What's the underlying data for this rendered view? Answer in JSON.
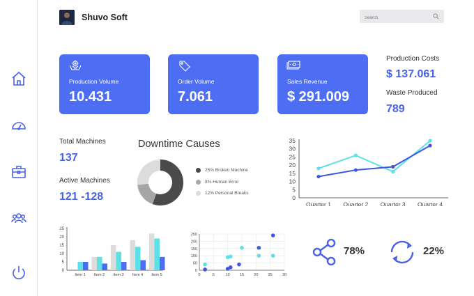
{
  "app": {
    "name": "Shuvo Soft"
  },
  "search": {
    "placeholder": "Search"
  },
  "sidebar": {
    "items": [
      {
        "name": "home-icon"
      },
      {
        "name": "dashboard-gauge-icon"
      },
      {
        "name": "briefcase-icon"
      },
      {
        "name": "users-icon"
      },
      {
        "name": "power-icon"
      }
    ]
  },
  "cards": [
    {
      "label": "Production Volume",
      "value": "10.431",
      "icon": "hands-gear-icon"
    },
    {
      "label": "Order Volume",
      "value": "7.061",
      "icon": "tag-icon"
    },
    {
      "label": "Sales Revenue",
      "value": "$ 291.009",
      "icon": "money-icon"
    }
  ],
  "colors": {
    "accent": "#4d6ef2",
    "accent_dark": "#3d57e3",
    "teal": "#5ce1e6",
    "light_gray": "#dcdcdc",
    "dark_gray": "#4a4a4a",
    "mid_gray": "#a6a6a6"
  },
  "production_costs": {
    "label": "Production Costs",
    "value": "$ 137.061"
  },
  "waste_produced": {
    "label": "Waste Produced",
    "value": "789"
  },
  "total_machines": {
    "label": "Total Machines",
    "value": "137"
  },
  "active_machines": {
    "label": "Active Machines",
    "value": "121 -128"
  },
  "downtime": {
    "title": "Downtime Causes",
    "legend": [
      {
        "label": "25% Broken Machine",
        "color": "#4a4a4a"
      },
      {
        "label": "8% Human Error",
        "color": "#a6a6a6"
      },
      {
        "label": "12% Personal Breaks",
        "color": "#dcdcdc"
      }
    ]
  },
  "kpis": {
    "share_pct": "78%",
    "refresh_pct": "22%"
  },
  "chart_data": [
    {
      "type": "pie",
      "labels": [
        "Broken Machine",
        "Human Error",
        "Personal Breaks"
      ],
      "values": [
        25,
        8,
        12
      ],
      "donut": true
    },
    {
      "type": "line",
      "categories": [
        "Quarter 1",
        "Quarter 2",
        "Quarter 3",
        "Quarter 4"
      ],
      "series": [
        {
          "values": [
            18,
            26,
            16,
            35
          ],
          "color": "#5ce1e6"
        },
        {
          "values": [
            13,
            17,
            19,
            32
          ],
          "color": "#3d57e3"
        }
      ],
      "ylim": [
        0,
        35
      ],
      "yticks": [
        0,
        5,
        10,
        15,
        20,
        25,
        30,
        35
      ],
      "grid": false
    },
    {
      "type": "bar",
      "categories": [
        "Item 1",
        "Item 2",
        "Item 3",
        "Item 4",
        "Item 5"
      ],
      "series": [
        {
          "values": [
            0,
            8,
            15,
            18,
            22
          ],
          "color": "#dcdcdc"
        },
        {
          "values": [
            5,
            8,
            11,
            14,
            19
          ],
          "color": "#5ce1e6"
        },
        {
          "values": [
            5,
            4,
            5,
            6,
            8
          ],
          "color": "#4d6ef2"
        }
      ],
      "ylim": [
        0,
        25
      ],
      "yticks": [
        0,
        5,
        10,
        15,
        20,
        25
      ],
      "grid": false
    },
    {
      "type": "scatter",
      "series": [
        {
          "points": [
            [
              2,
              40
            ],
            [
              10,
              90
            ],
            [
              11,
              95
            ],
            [
              15,
              155
            ],
            [
              21,
              100
            ],
            [
              26,
              100
            ]
          ],
          "color": "#5ce1e6"
        },
        {
          "points": [
            [
              2,
              5
            ],
            [
              10,
              10
            ],
            [
              11,
              20
            ],
            [
              14,
              40
            ],
            [
              21,
              155
            ],
            [
              26,
              240
            ]
          ],
          "color": "#3d57e3"
        }
      ],
      "xlim": [
        0,
        30
      ],
      "ylim": [
        0,
        250
      ],
      "xticks": [
        0,
        5,
        10,
        15,
        20,
        25,
        30
      ],
      "yticks": [
        0,
        50,
        100,
        150,
        200,
        250
      ],
      "grid": true
    }
  ]
}
